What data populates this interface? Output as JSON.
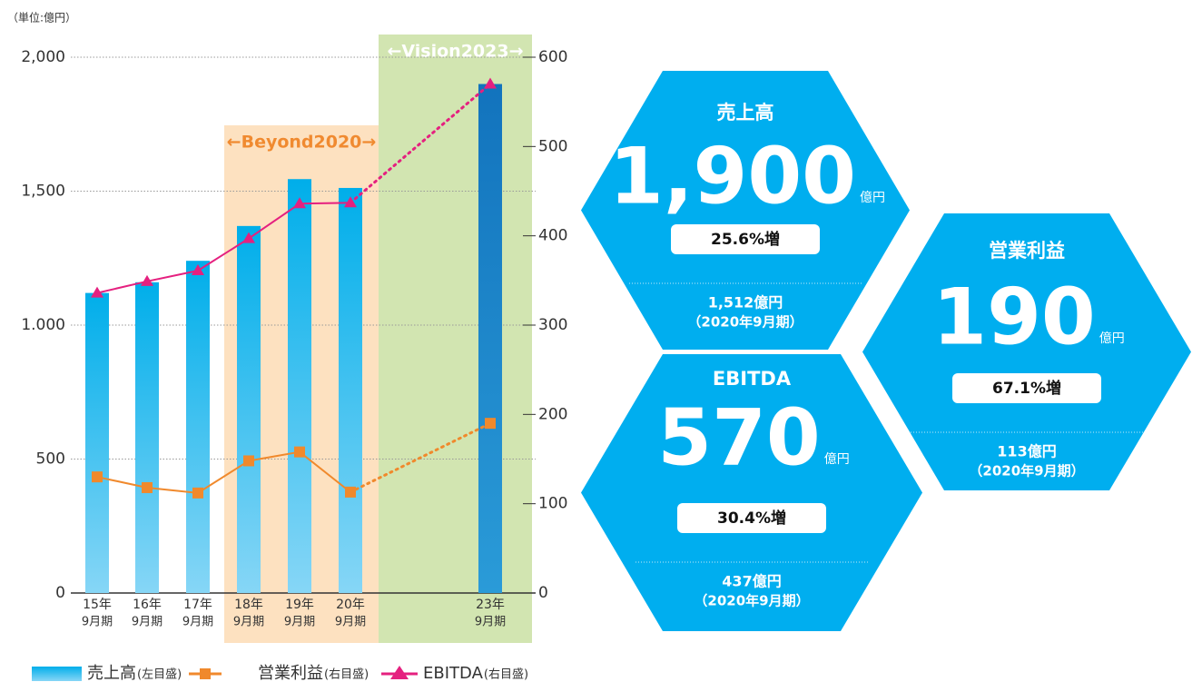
{
  "unit_note": "（単位:億円）",
  "chart_data": {
    "type": "bar-line",
    "categories": [
      "15年",
      "16年",
      "17年",
      "18年",
      "19年",
      "20年",
      "23年"
    ],
    "category_sublabels": [
      "9月期",
      "9月期",
      "9月期",
      "9月期",
      "9月期",
      "9月期",
      "9月期"
    ],
    "ylim": [
      0,
      2000
    ],
    "yticks": [
      {
        "value": 2000,
        "label": "2,000"
      },
      {
        "value": 1500,
        "label": "1,500"
      },
      {
        "value": 1000,
        "label": "1.000"
      },
      500,
      0
    ],
    "y2lim": [
      0,
      600
    ],
    "y2ticks": [
      600,
      500,
      400,
      300,
      200,
      100,
      0
    ],
    "grid": true,
    "bands": [
      {
        "label": "←Beyond2020→",
        "color": "#fde1c0",
        "text_color": "#f08a30"
      },
      {
        "label": "←Vision2023→",
        "color": "#d2e5b1",
        "text_color": "#ffffff"
      }
    ],
    "series": [
      {
        "name": "売上高",
        "legend_note": "(左目盛)",
        "type": "bar",
        "color": "#12b0ea",
        "highlight_color": "#1676c0",
        "values": [
          1120,
          1160,
          1240,
          1370,
          1545,
          1512,
          1900
        ]
      },
      {
        "name": "営業利益",
        "legend_note": "(右目盛)",
        "type": "line",
        "axis": "y2",
        "color": "#f0892c",
        "values": [
          130,
          118,
          112,
          148,
          158,
          113,
          190
        ]
      },
      {
        "name": "EBITDA",
        "legend_note": "(右目盛)",
        "type": "line",
        "axis": "y2",
        "color": "#e5207f",
        "values": [
          336,
          349,
          361,
          397,
          436,
          437,
          570
        ]
      }
    ]
  },
  "cards": [
    {
      "title": "売上高",
      "value": "1,900",
      "unit": "億円",
      "change": "25.6%増",
      "base": "1,512億円",
      "base_period": "（2020年9月期）"
    },
    {
      "title": "営業利益",
      "value": "190",
      "unit": "億円",
      "change": "67.1%増",
      "base": "113億円",
      "base_period": "（2020年9月期）"
    },
    {
      "title": "EBITDA",
      "value": "570",
      "unit": "億円",
      "change": "30.4%増",
      "base": "437億円",
      "base_period": "（2020年9月期）"
    }
  ]
}
